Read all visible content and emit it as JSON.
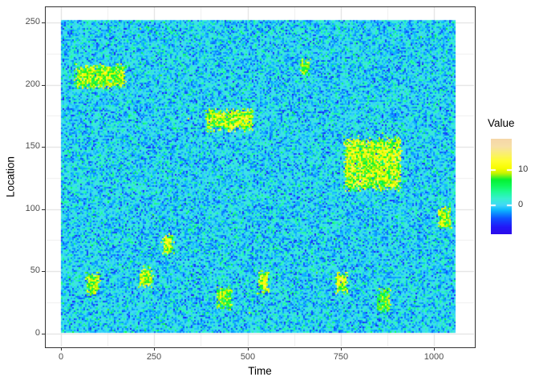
{
  "chart_data": {
    "type": "heatmap",
    "title": "",
    "xlabel": "Time",
    "ylabel": "Location",
    "x_ticks": [
      0,
      250,
      500,
      750,
      1000
    ],
    "y_ticks": [
      0,
      50,
      100,
      150,
      200,
      250
    ],
    "x_minor_ticks": [
      125,
      375,
      625,
      875
    ],
    "y_minor_ticks": [
      25,
      75,
      125,
      175,
      225
    ],
    "x_domain": [
      0,
      1060
    ],
    "y_domain": [
      0,
      252
    ],
    "grid": "on",
    "legend": {
      "title": "Value",
      "position": "right",
      "tick_values": [
        10,
        0
      ],
      "value_range": [
        -8.2,
        18.9
      ]
    },
    "palette_stops": [
      [
        0.0,
        "#2B0BEA"
      ],
      [
        0.076,
        "#2318F8"
      ],
      [
        0.168,
        "#0D53FF"
      ],
      [
        0.252,
        "#0BB5FE"
      ],
      [
        0.303,
        "#41D8F8"
      ],
      [
        0.37,
        "#37EFD2"
      ],
      [
        0.437,
        "#20FA9A"
      ],
      [
        0.504,
        "#0FF95C"
      ],
      [
        0.571,
        "#05F231"
      ],
      [
        0.64,
        "#C8F500"
      ],
      [
        0.69,
        "#F8FC00"
      ],
      [
        0.77,
        "#FFFE30"
      ],
      [
        0.84,
        "#FAF06E"
      ],
      [
        0.92,
        "#F7E0A8"
      ],
      [
        1.0,
        "#F5D7A8"
      ]
    ],
    "background_noise": {
      "mean": 0,
      "sd": 2.2
    },
    "hotspots": [
      {
        "time": [
          38,
          172
        ],
        "loc": [
          197,
          216
        ],
        "mean": 8.8,
        "sd": 2.2
      },
      {
        "time": [
          69,
          104
        ],
        "loc": [
          31,
          48
        ],
        "mean": 9.0,
        "sd": 2.2
      },
      {
        "time": [
          211,
          248
        ],
        "loc": [
          37,
          53
        ],
        "mean": 9.2,
        "sd": 2.2
      },
      {
        "time": [
          272,
          301
        ],
        "loc": [
          63,
          79
        ],
        "mean": 9.5,
        "sd": 2.2
      },
      {
        "time": [
          390,
          515
        ],
        "loc": [
          163,
          180
        ],
        "mean": 9.3,
        "sd": 2.4
      },
      {
        "time": [
          420,
          459
        ],
        "loc": [
          19,
          37
        ],
        "mean": 8.2,
        "sd": 2.2
      },
      {
        "time": [
          529,
          557
        ],
        "loc": [
          32,
          50
        ],
        "mean": 9.5,
        "sd": 2.2
      },
      {
        "time": [
          642,
          669
        ],
        "loc": [
          207,
          220
        ],
        "mean": 8.0,
        "sd": 2.0
      },
      {
        "time": [
          739,
          770
        ],
        "loc": [
          32,
          48
        ],
        "mean": 10.0,
        "sd": 2.2
      },
      {
        "time": [
          762,
          914
        ],
        "loc": [
          115,
          157
        ],
        "mean": 9.3,
        "sd": 2.6
      },
      {
        "time": [
          851,
          884
        ],
        "loc": [
          17,
          35
        ],
        "mean": 7.3,
        "sd": 2.0
      },
      {
        "time": [
          1014,
          1048
        ],
        "loc": [
          83,
          101
        ],
        "mean": 9.0,
        "sd": 2.2
      }
    ],
    "colors": {
      "panel_border": "#333333",
      "grid_major": "#DEDEDE",
      "grid_minor": "#EFEFEF",
      "tick_mark": "#333333",
      "tick_text": "#4D4D4D",
      "axis_title_text": "#000000",
      "panel_background": "#FFFFFF"
    }
  }
}
